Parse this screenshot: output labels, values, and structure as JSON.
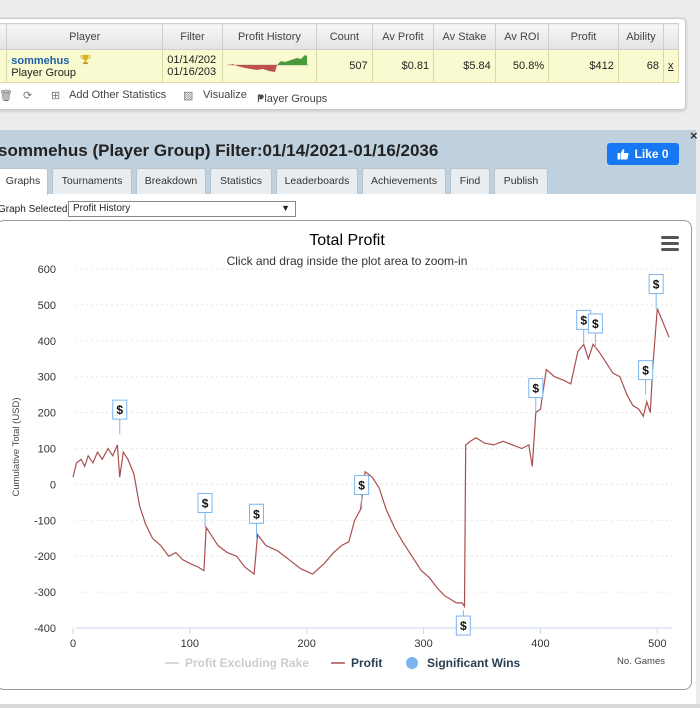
{
  "stats_table": {
    "headers": [
      "Player",
      "Filter",
      "Profit History",
      "Count",
      "Av Profit",
      "Av Stake",
      "Av ROI",
      "Profit",
      "Ability"
    ],
    "row": {
      "player_name": "sommehus",
      "player_type": "Player Group",
      "filter_from": "01/14/202",
      "filter_to": "01/16/203",
      "count": "507",
      "av_profit": "$0.81",
      "av_stake": "$5.84",
      "av_roi": "50.8%",
      "profit": "$412",
      "ability": "68",
      "remove": "x"
    }
  },
  "toolbar": {
    "add_stats": "Add Other Statistics",
    "visualize": "Visualize",
    "player_groups": "Player Groups"
  },
  "report": {
    "title": "sommehus (Player Group) Filter:01/14/2021-01/16/2036",
    "like_label": "Like 0",
    "close": "×",
    "tabs": [
      "Graphs",
      "Tournaments",
      "Breakdown",
      "Statistics",
      "Leaderboards",
      "Achievements",
      "Find",
      "Publish"
    ],
    "active_tab": "Graphs",
    "graph_selected_label": "Graph Selected:",
    "graph_selected_value": "Profit History"
  },
  "chart_data": {
    "type": "line",
    "title": "Total Profit",
    "subtitle": "Click and drag inside the plot area to zoom-in",
    "ylabel": "Cumulative Total (USD)",
    "xlabel": "No. Games",
    "xlim": [
      0,
      510
    ],
    "ylim": [
      -400,
      600
    ],
    "x_ticks": [
      "0",
      "100",
      "200",
      "300",
      "400",
      "500"
    ],
    "y_ticks": [
      "600",
      "500",
      "400",
      "300",
      "200",
      "100",
      "0",
      "-100",
      "-200",
      "-300",
      "-400"
    ],
    "grid": true,
    "legend_position": "bottom",
    "legend": [
      "Profit Excluding Rake",
      "Profit",
      "Significant Wins"
    ],
    "colors": {
      "profit": "#a94f4f",
      "rake": "#cccccc",
      "sig_wins": "#7cb5ec",
      "title": "#2b3e50"
    },
    "series": [
      {
        "name": "Profit",
        "points": [
          [
            0,
            20
          ],
          [
            3,
            60
          ],
          [
            7,
            70
          ],
          [
            10,
            50
          ],
          [
            13,
            80
          ],
          [
            17,
            60
          ],
          [
            21,
            90
          ],
          [
            25,
            70
          ],
          [
            30,
            100
          ],
          [
            34,
            80
          ],
          [
            38,
            110
          ],
          [
            40,
            20
          ],
          [
            43,
            90
          ],
          [
            47,
            70
          ],
          [
            52,
            30
          ],
          [
            57,
            -60
          ],
          [
            62,
            -110
          ],
          [
            68,
            -150
          ],
          [
            75,
            -170
          ],
          [
            82,
            -200
          ],
          [
            88,
            -190
          ],
          [
            94,
            -210
          ],
          [
            100,
            -220
          ],
          [
            107,
            -230
          ],
          [
            112,
            -240
          ],
          [
            114,
            -120
          ],
          [
            118,
            -140
          ],
          [
            124,
            -170
          ],
          [
            132,
            -190
          ],
          [
            140,
            -200
          ],
          [
            147,
            -230
          ],
          [
            155,
            -250
          ],
          [
            158,
            -140
          ],
          [
            165,
            -170
          ],
          [
            175,
            -185
          ],
          [
            185,
            -210
          ],
          [
            195,
            -235
          ],
          [
            205,
            -250
          ],
          [
            215,
            -220
          ],
          [
            223,
            -190
          ],
          [
            230,
            -170
          ],
          [
            236,
            -160
          ],
          [
            241,
            -100
          ],
          [
            246,
            -70
          ],
          [
            250,
            35
          ],
          [
            256,
            20
          ],
          [
            262,
            -10
          ],
          [
            268,
            -70
          ],
          [
            275,
            -120
          ],
          [
            282,
            -160
          ],
          [
            290,
            -200
          ],
          [
            298,
            -240
          ],
          [
            305,
            -260
          ],
          [
            312,
            -290
          ],
          [
            318,
            -310
          ],
          [
            323,
            -320
          ],
          [
            328,
            -330
          ],
          [
            333,
            -330
          ],
          [
            335,
            -340
          ],
          [
            336,
            110
          ],
          [
            340,
            120
          ],
          [
            345,
            130
          ],
          [
            352,
            115
          ],
          [
            360,
            110
          ],
          [
            368,
            120
          ],
          [
            376,
            110
          ],
          [
            384,
            100
          ],
          [
            390,
            110
          ],
          [
            393,
            50
          ],
          [
            396,
            200
          ],
          [
            400,
            210
          ],
          [
            405,
            320
          ],
          [
            412,
            300
          ],
          [
            420,
            290
          ],
          [
            426,
            280
          ],
          [
            432,
            370
          ],
          [
            437,
            390
          ],
          [
            441,
            350
          ],
          [
            445,
            390
          ],
          [
            450,
            370
          ],
          [
            456,
            340
          ],
          [
            462,
            310
          ],
          [
            468,
            300
          ],
          [
            474,
            250
          ],
          [
            479,
            220
          ],
          [
            484,
            210
          ],
          [
            488,
            190
          ],
          [
            491,
            230
          ],
          [
            494,
            200
          ],
          [
            496,
            320
          ],
          [
            500,
            490
          ],
          [
            505,
            450
          ],
          [
            510,
            410
          ]
        ]
      },
      {
        "name": "Significant Wins",
        "label": "$",
        "points": [
          [
            40,
            140
          ],
          [
            113,
            -120
          ],
          [
            157,
            -150
          ],
          [
            247,
            -70
          ],
          [
            334,
            -350
          ],
          [
            396,
            200
          ],
          [
            437,
            390
          ],
          [
            447,
            380
          ],
          [
            490,
            250
          ],
          [
            499,
            490
          ]
        ]
      }
    ]
  }
}
